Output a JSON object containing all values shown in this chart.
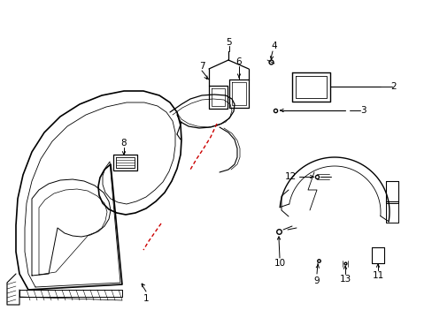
{
  "background_color": "#ffffff",
  "line_color": "#000000",
  "red_color": "#cc0000",
  "fig_width": 4.89,
  "fig_height": 3.6,
  "dpi": 100
}
